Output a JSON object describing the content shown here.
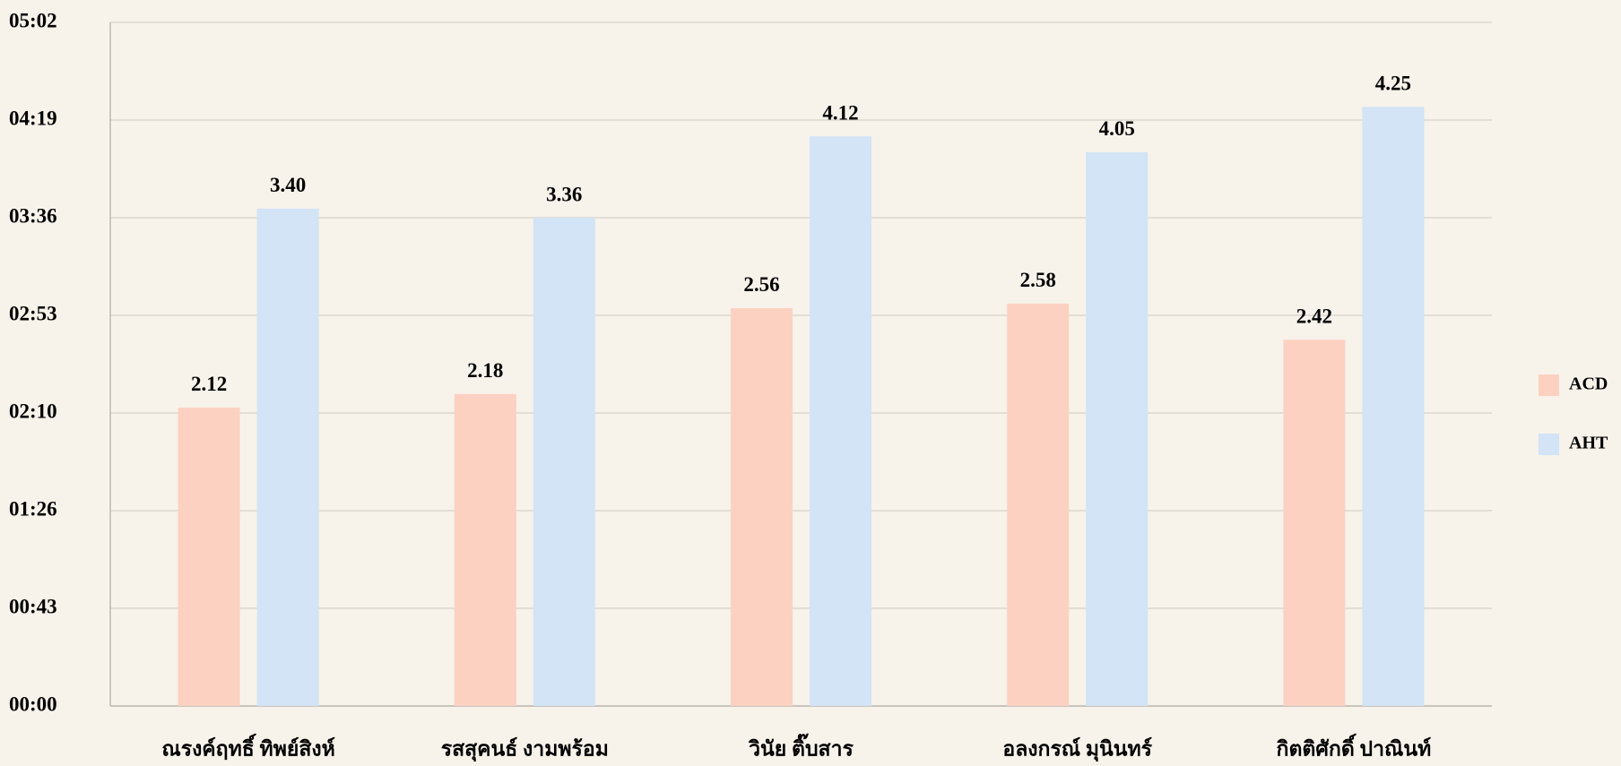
{
  "chart_data": {
    "type": "bar",
    "categories": [
      "ณรงค์ฤทธิ์  ทิพย์สิงห์",
      "รสสุคนธ์ งามพร้อม",
      "วินัย  ติ๊บสาร",
      "อลงกรณ์  มุนินทร์",
      "กิตติศักดิ์ ปาณินท์"
    ],
    "series": [
      {
        "name": "ACD",
        "color": "#fcd1c1",
        "values": [
          132,
          138,
          176,
          178,
          162
        ],
        "value_labels": [
          "2.12",
          "2.18",
          "2.56",
          "2.58",
          "2.42"
        ]
      },
      {
        "name": "AHT",
        "color": "#d2e4f5",
        "values": [
          220,
          216,
          252,
          245,
          265
        ],
        "value_labels": [
          "3.40",
          "3.36",
          "4.12",
          "4.05",
          "4.25"
        ]
      }
    ],
    "ylim": [
      0,
      302.4
    ],
    "yticks": [
      {
        "value": 0,
        "label": "00:00"
      },
      {
        "value": 43.2,
        "label": "00:43"
      },
      {
        "value": 86.4,
        "label": "01:26"
      },
      {
        "value": 129.6,
        "label": "02:10"
      },
      {
        "value": 172.8,
        "label": "02:53"
      },
      {
        "value": 216,
        "label": "03:36"
      },
      {
        "value": 259.2,
        "label": "04:19"
      },
      {
        "value": 302.4,
        "label": "05:02"
      }
    ],
    "grid": true,
    "legend": "right"
  }
}
